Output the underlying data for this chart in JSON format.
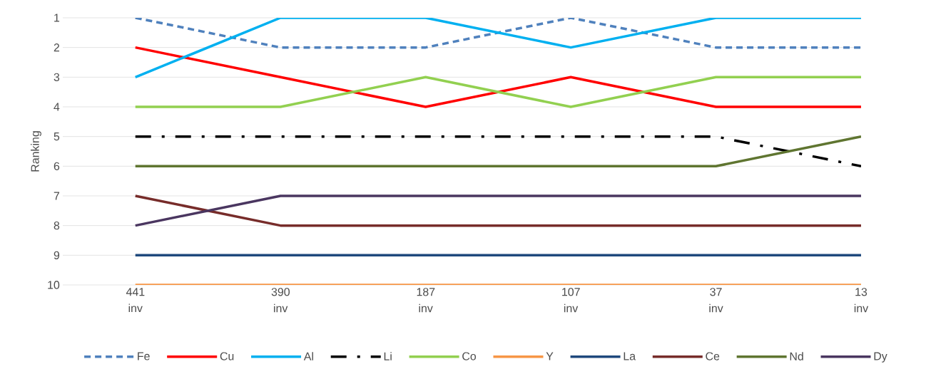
{
  "chart_data": {
    "type": "line",
    "ylabel": "Ranking",
    "categories": [
      "441 inv",
      "390 inv",
      "187 inv",
      "107 inv",
      "37 inv",
      "13 inv"
    ],
    "ylim": [
      10,
      1
    ],
    "yticks": [
      1,
      2,
      3,
      4,
      5,
      6,
      7,
      8,
      9,
      10
    ],
    "grid": "y",
    "legend": "bottom",
    "marker": "none",
    "series": [
      {
        "name": "Fe",
        "color": "#4f81bd",
        "line_style": "dashed",
        "values": [
          1,
          2,
          2,
          1,
          2,
          2
        ]
      },
      {
        "name": "Cu",
        "color": "#ff0000",
        "values": [
          2,
          3,
          4,
          3,
          4,
          4
        ]
      },
      {
        "name": "Al",
        "color": "#00b0f0",
        "values": [
          3,
          1,
          1,
          2,
          1,
          1
        ]
      },
      {
        "name": "Li",
        "color": "#000000",
        "line_style": "dashdot",
        "values": [
          5,
          5,
          5,
          5,
          5,
          6
        ]
      },
      {
        "name": "Co",
        "color": "#92d050",
        "values": [
          4,
          4,
          3,
          4,
          3,
          3
        ]
      },
      {
        "name": "Y",
        "color": "#f79646",
        "values": [
          10,
          10,
          10,
          10,
          10,
          10
        ]
      },
      {
        "name": "La",
        "color": "#1f497d",
        "values": [
          9,
          9,
          9,
          9,
          9,
          9
        ]
      },
      {
        "name": "Ce",
        "color": "#772c2a",
        "values": [
          7,
          8,
          8,
          8,
          8,
          8
        ]
      },
      {
        "name": "Nd",
        "color": "#5f7530",
        "values": [
          6,
          6,
          6,
          6,
          6,
          5
        ]
      },
      {
        "name": "Dy",
        "color": "#4a3660",
        "values": [
          8,
          7,
          7,
          7,
          7,
          7
        ]
      }
    ]
  }
}
